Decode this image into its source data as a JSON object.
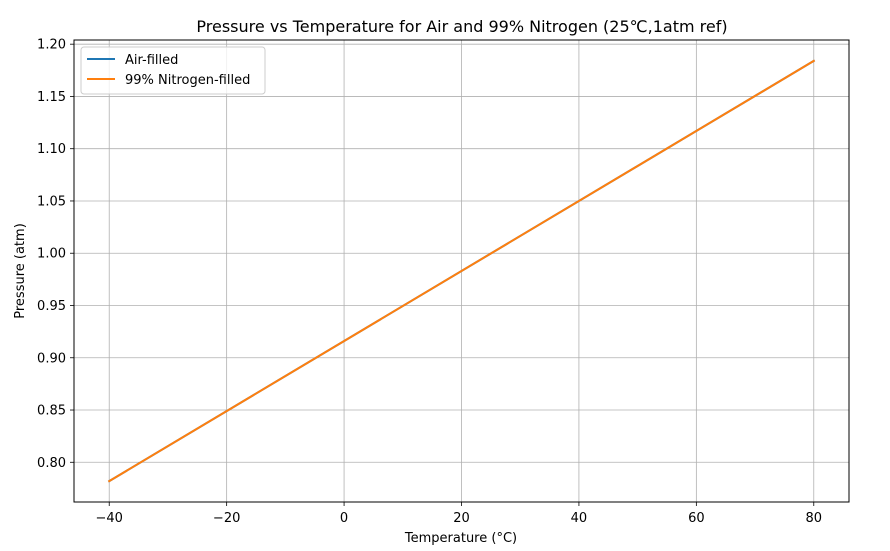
{
  "chart_data": {
    "type": "line",
    "title": "Pressure vs Temperature for Air and 99% Nitrogen (25℃,1atm ref)",
    "xlabel": "Temperature (°C)",
    "ylabel": "Pressure (atm)",
    "xlim": [
      -46,
      86
    ],
    "ylim": [
      0.762,
      1.204
    ],
    "x_ticks": [
      -40,
      -20,
      0,
      20,
      40,
      60,
      80
    ],
    "x_tick_labels": [
      "−40",
      "−20",
      "0",
      "20",
      "40",
      "60",
      "80"
    ],
    "y_ticks": [
      0.8,
      0.85,
      0.9,
      0.95,
      1.0,
      1.05,
      1.1,
      1.15,
      1.2
    ],
    "y_tick_labels": [
      "0.80",
      "0.85",
      "0.90",
      "0.95",
      "1.00",
      "1.05",
      "1.10",
      "1.15",
      "1.20"
    ],
    "grid": true,
    "legend": "top-left",
    "x": [
      -40,
      80
    ],
    "series": [
      {
        "name": "Air-filled",
        "color": "#1f77b4",
        "values": [
          0.782,
          1.184
        ]
      },
      {
        "name": "99% Nitrogen-filled",
        "color": "#ff7f0e",
        "values": [
          0.782,
          1.184
        ]
      }
    ]
  }
}
